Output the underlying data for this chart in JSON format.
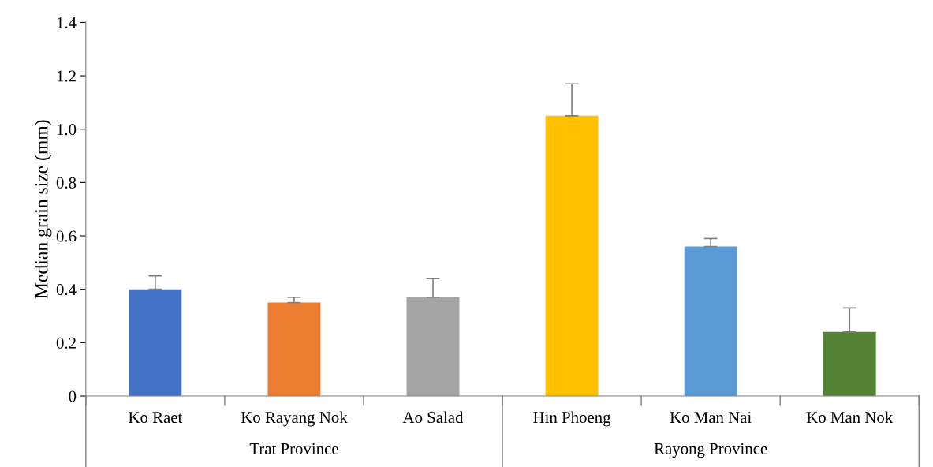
{
  "chart_data": {
    "type": "bar",
    "ylabel": "Median grain size (mm)",
    "categories": [
      "Ko Raet",
      "Ko Rayang Nok",
      "Ao Salad",
      "Hin Phoeng",
      "Ko Man Nai",
      "Ko Man Nok"
    ],
    "values": [
      0.4,
      0.35,
      0.37,
      1.05,
      0.56,
      0.24
    ],
    "colors": [
      "#4472c4",
      "#ed7d31",
      "#a5a5a5",
      "#ffc000",
      "#5b9bd5",
      "#548235"
    ],
    "errors": [
      [
        0.4,
        0.45
      ],
      [
        0.35,
        0.37
      ],
      [
        0.37,
        0.44
      ],
      [
        1.05,
        1.17
      ],
      [
        0.56,
        0.59
      ],
      [
        0.24,
        0.33
      ]
    ],
    "ylim": [
      0,
      1.4
    ],
    "yticks": [
      0,
      0.2,
      0.4,
      0.6,
      0.8,
      {
        "value": 1,
        "label": "1.0"
      },
      1.2,
      1.4
    ],
    "annotations": [
      "Trat Province",
      "Rayong Province"
    ],
    "grid": false,
    "legend": false
  }
}
